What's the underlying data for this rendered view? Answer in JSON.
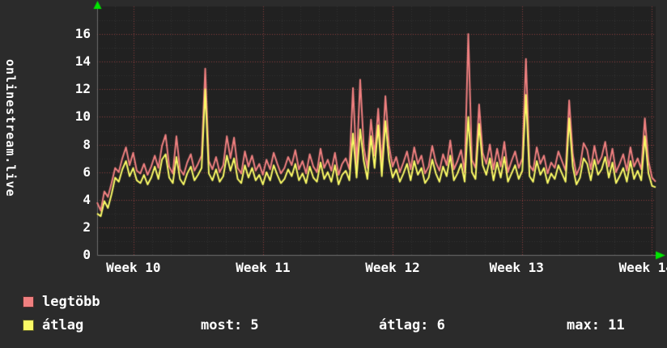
{
  "axis": {
    "vertical_label": "onlinestream.live"
  },
  "colors": {
    "background": "#2b2b2b",
    "plot_background": "#212121",
    "text": "#ffffff",
    "arrow": "#00e500",
    "grid_minor": "rgba(255,255,255,0.08)",
    "grid_major": "rgba(230,85,85,0.55)",
    "axis_line": "rgba(140,140,140,0.7)"
  },
  "chart_data": {
    "type": "line",
    "title": "",
    "xlabel": "",
    "ylabel": "onlinestream.live",
    "ylim": [
      0,
      18
    ],
    "y_ticks": [
      0,
      2,
      4,
      6,
      8,
      10,
      12,
      14,
      16
    ],
    "x_ticks": [
      {
        "label": "Week 10",
        "pos": 0.065
      },
      {
        "label": "Week 11",
        "pos": 0.297
      },
      {
        "label": "Week 12",
        "pos": 0.529
      },
      {
        "label": "Week 13",
        "pos": 0.751
      },
      {
        "label": "Week 14",
        "pos": 0.983
      }
    ],
    "grid": {
      "on": true,
      "minor_divisions_per_week": 7,
      "minor_y_step": 1,
      "major_y_step": 2
    },
    "legend_position": "bottom-left",
    "series": [
      {
        "name": "legtöbb",
        "color": "#f08080",
        "values": [
          3.8,
          3.2,
          4.6,
          4.2,
          5.2,
          6.3,
          6.0,
          7.0,
          7.8,
          6.5,
          7.4,
          6.1,
          5.9,
          6.6,
          5.8,
          6.4,
          7.2,
          6.3,
          7.9,
          8.7,
          6.4,
          5.9,
          8.6,
          6.2,
          5.8,
          6.7,
          7.3,
          6.1,
          6.6,
          7.2,
          13.5,
          6.8,
          6.2,
          7.1,
          6.0,
          6.5,
          8.6,
          7.0,
          8.5,
          6.3,
          5.9,
          7.5,
          6.4,
          7.2,
          6.1,
          6.6,
          5.8,
          6.9,
          6.2,
          7.4,
          6.6,
          5.9,
          6.3,
          7.1,
          6.5,
          7.6,
          6.2,
          6.8,
          5.9,
          7.3,
          6.4,
          6.0,
          7.7,
          6.3,
          6.9,
          6.1,
          7.4,
          5.8,
          6.6,
          7.0,
          6.2,
          12.1,
          6.4,
          12.7,
          7.8,
          6.3,
          9.8,
          7.2,
          10.6,
          6.5,
          11.5,
          7.9,
          6.4,
          7.1,
          6.0,
          6.7,
          7.5,
          6.2,
          7.8,
          6.6,
          7.2,
          5.9,
          6.4,
          7.9,
          6.7,
          6.1,
          7.3,
          6.5,
          8.3,
          6.2,
          6.8,
          7.6,
          6.0,
          16.0,
          6.9,
          6.3,
          10.9,
          7.4,
          6.6,
          8.0,
          6.2,
          7.7,
          6.4,
          8.2,
          6.0,
          6.8,
          7.5,
          6.3,
          7.0,
          14.2,
          6.5,
          6.1,
          7.8,
          6.6,
          7.2,
          5.9,
          6.7,
          6.3,
          7.5,
          6.8,
          6.1,
          11.2,
          7.3,
          5.8,
          6.4,
          8.1,
          7.6,
          6.2,
          7.9,
          6.6,
          7.1,
          8.2,
          6.4,
          7.7,
          6.0,
          6.6,
          7.3,
          6.1,
          7.8,
          6.4,
          7.0,
          6.2,
          9.9,
          6.8,
          5.6,
          5.3
        ]
      },
      {
        "name": "átlag",
        "color": "#fafa66",
        "values": [
          3.0,
          2.8,
          3.9,
          3.4,
          4.4,
          5.6,
          5.3,
          6.2,
          6.8,
          5.7,
          6.3,
          5.4,
          5.2,
          5.8,
          5.1,
          5.6,
          6.4,
          5.5,
          6.9,
          7.3,
          5.6,
          5.2,
          7.1,
          5.5,
          5.1,
          5.9,
          6.4,
          5.4,
          5.8,
          6.3,
          12.0,
          5.9,
          5.4,
          6.2,
          5.3,
          5.7,
          7.2,
          6.1,
          7.0,
          5.5,
          5.2,
          6.5,
          5.6,
          6.3,
          5.4,
          5.8,
          5.1,
          6.0,
          5.4,
          6.5,
          5.8,
          5.2,
          5.5,
          6.2,
          5.7,
          6.6,
          5.4,
          5.9,
          5.2,
          6.4,
          5.6,
          5.3,
          6.7,
          5.5,
          6.0,
          5.3,
          6.5,
          5.1,
          5.8,
          6.1,
          5.4,
          8.8,
          5.6,
          9.1,
          6.8,
          5.5,
          8.6,
          6.3,
          9.4,
          5.7,
          9.7,
          6.9,
          5.6,
          6.2,
          5.3,
          5.9,
          6.6,
          5.4,
          6.8,
          5.8,
          6.3,
          5.2,
          5.6,
          6.9,
          5.9,
          5.3,
          6.4,
          5.7,
          7.2,
          5.4,
          5.9,
          6.6,
          5.3,
          10.0,
          6.0,
          5.5,
          9.5,
          6.5,
          5.8,
          7.0,
          5.4,
          6.7,
          5.6,
          7.1,
          5.3,
          5.9,
          6.5,
          5.5,
          6.1,
          11.6,
          5.7,
          5.3,
          6.8,
          5.8,
          6.3,
          5.2,
          5.9,
          5.5,
          6.5,
          5.9,
          5.3,
          9.9,
          6.4,
          5.1,
          5.6,
          7.0,
          6.6,
          5.4,
          6.9,
          5.8,
          6.2,
          7.1,
          5.6,
          6.7,
          5.2,
          5.7,
          6.3,
          5.3,
          6.8,
          5.5,
          6.1,
          5.4,
          8.6,
          5.9,
          5.0,
          4.9
        ]
      }
    ]
  },
  "legend": {
    "items": [
      {
        "label": "legtöbb",
        "color": "#f08080"
      },
      {
        "label": "átlag",
        "color": "#fafa66"
      }
    ]
  },
  "stats": {
    "most": "most: 5",
    "atlag": "átlag: 6",
    "max": "max: 11"
  }
}
